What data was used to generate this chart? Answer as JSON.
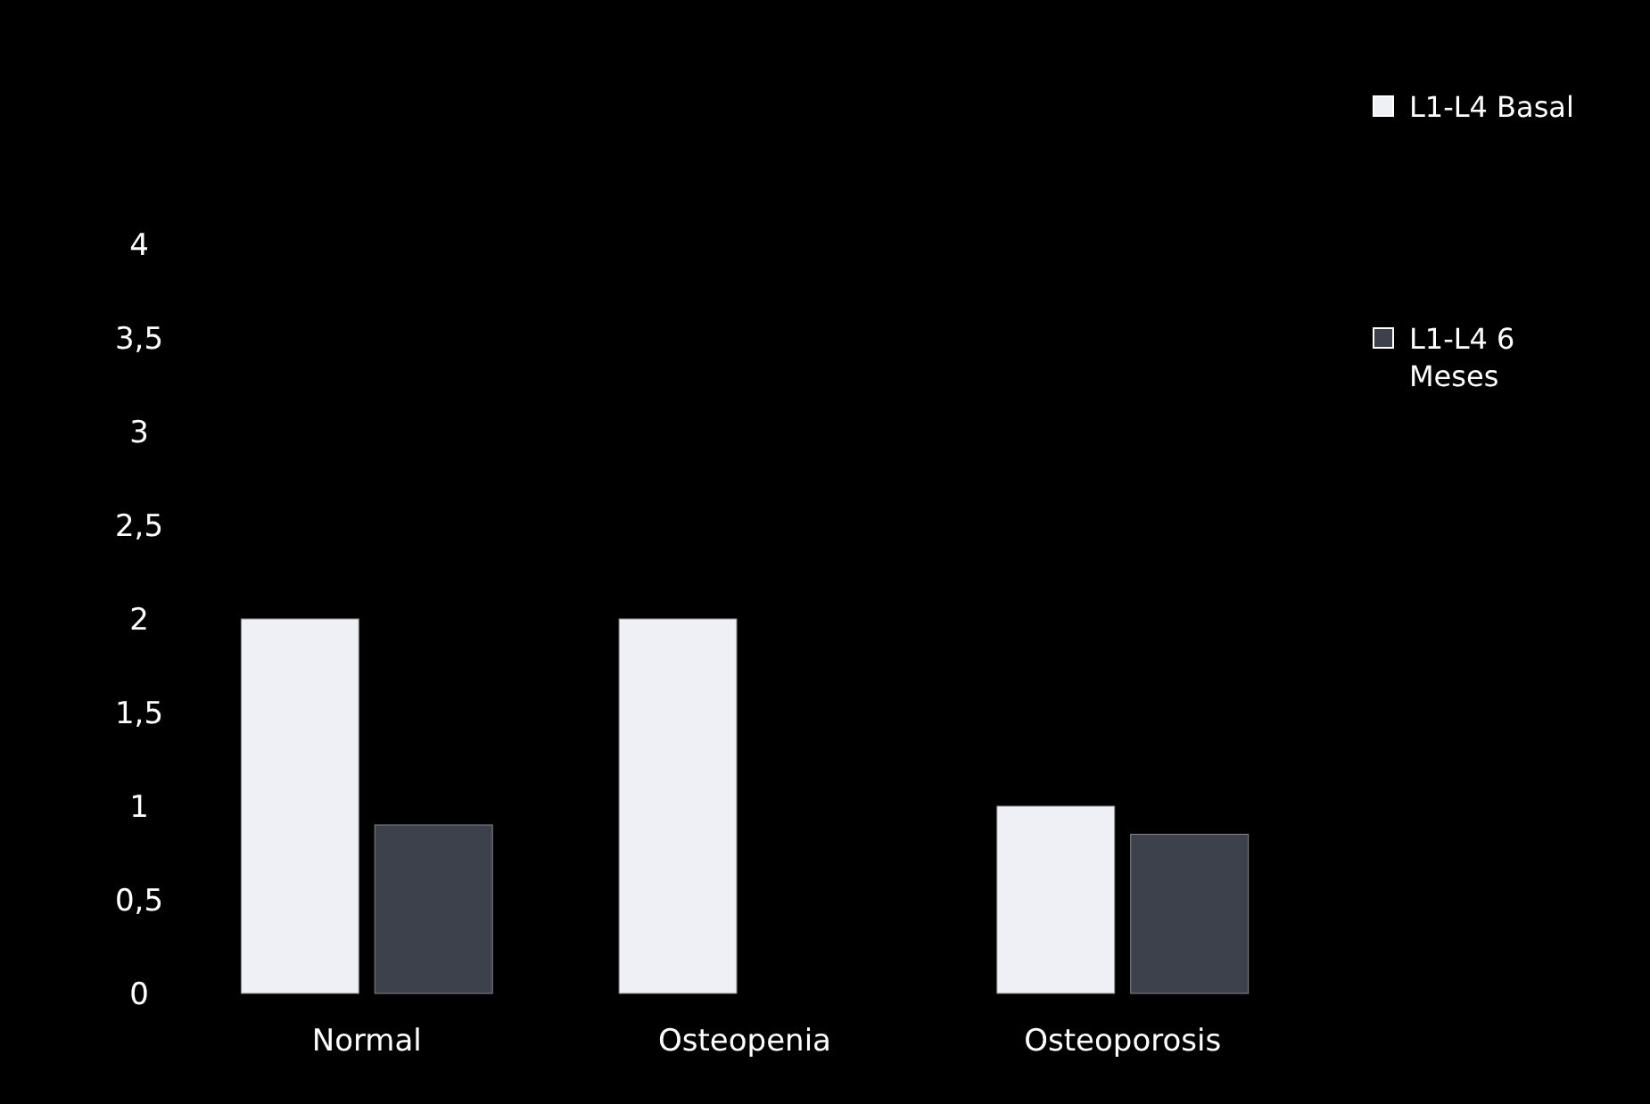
{
  "chart_data": {
    "type": "bar",
    "categories": [
      "Normal",
      "Osteopenia",
      "Osteoporosis"
    ],
    "series": [
      {
        "name": "L1-L4 Basal",
        "color": "#eef0f6",
        "values": [
          2,
          2,
          1
        ]
      },
      {
        "name": "L1-L4 6 Meses",
        "color": "#3c414c",
        "values": [
          0.9,
          null,
          0.85
        ]
      }
    ],
    "ylim": [
      0,
      4
    ],
    "yticks": [
      0,
      {
        "value": 0.5,
        "label": "0,5"
      },
      1,
      {
        "value": 1.5,
        "label": "1,5"
      },
      2,
      {
        "value": 2.5,
        "label": "2,5"
      },
      3,
      {
        "value": 3.5,
        "label": "3,5"
      },
      4
    ],
    "legend": "right",
    "grid": false
  }
}
